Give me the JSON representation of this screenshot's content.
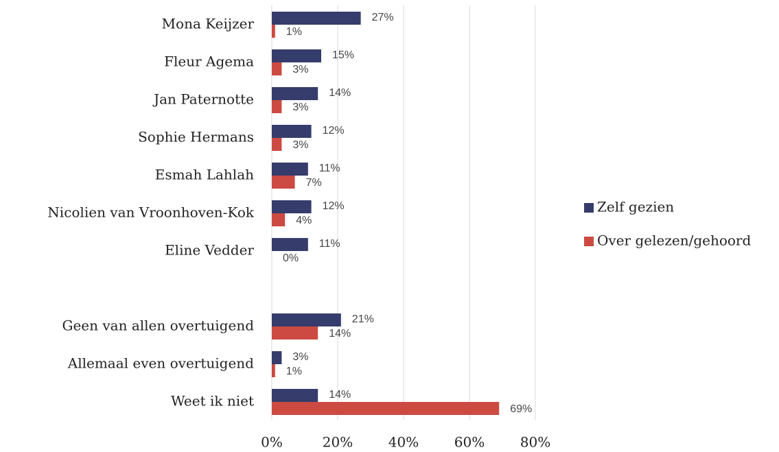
{
  "chart_data": {
    "type": "hbar",
    "categories": [
      "Mona Keijzer",
      "Fleur Agema",
      "Jan Paternotte",
      "Sophie Hermans",
      "Esmah Lahlah",
      "Nicolien van Vroonhoven-Kok",
      "Eline Vedder",
      null,
      "Geen van allen overtuigend",
      "Allemaal even overtuigend",
      "Weet ik niet"
    ],
    "series": [
      {
        "name": "Zelf gezien",
        "color": "#363c6b",
        "values": [
          27,
          15,
          14,
          12,
          11,
          12,
          11,
          null,
          21,
          3,
          14
        ],
        "value_labels": [
          "27%",
          "15%",
          "14%",
          "12%",
          "11%",
          "12%",
          "11%",
          null,
          "21%",
          "3%",
          "14%"
        ]
      },
      {
        "name": "Over gelezen/gehoord",
        "color": "#cc4a42",
        "values": [
          1,
          3,
          3,
          3,
          7,
          4,
          0,
          null,
          14,
          1,
          69
        ],
        "value_labels": [
          "1%",
          "3%",
          "3%",
          "3%",
          "7%",
          "4%",
          "0%",
          null,
          "14%",
          "1%",
          "69%"
        ]
      }
    ],
    "xlim": [
      0,
      80
    ],
    "xticks": [
      {
        "value": 0,
        "label": "0%"
      },
      {
        "value": 20,
        "label": "20%"
      },
      {
        "value": 40,
        "label": "40%"
      },
      {
        "value": 60,
        "label": "60%"
      },
      {
        "value": 80,
        "label": "80%"
      }
    ],
    "grid": true,
    "legend": "right"
  }
}
